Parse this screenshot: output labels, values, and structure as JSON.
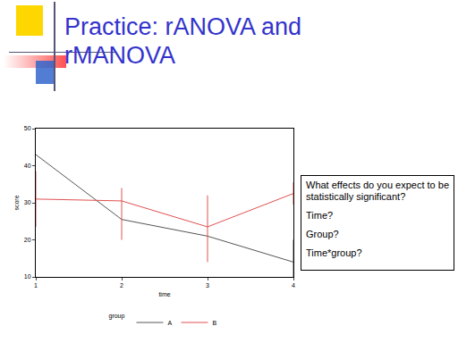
{
  "slide": {
    "title": "Practice: rANOVA and rMANOVA",
    "questions": [
      "What effects do you expect to be statistically significant?",
      "Time?",
      "Group?",
      "Time*group?"
    ]
  },
  "chart_data": {
    "type": "line",
    "x": [
      1,
      2,
      3,
      4
    ],
    "xlabel": "time",
    "ylabel": "score",
    "legend_title": "group",
    "series": [
      {
        "name": "A",
        "color": "#555555",
        "values": [
          43,
          25.5,
          21,
          14
        ],
        "error_plus": [
          null,
          null,
          null,
          6
        ],
        "error_minus": [
          null,
          null,
          null,
          4
        ]
      },
      {
        "name": "B",
        "color": "#e05050",
        "values": [
          31,
          30.5,
          23.5,
          32.5
        ],
        "error_plus": [
          7.5,
          3.5,
          8.5,
          3
        ],
        "error_minus": [
          7.5,
          10.5,
          9.5,
          3
        ]
      }
    ],
    "xlim": [
      1,
      4
    ],
    "ylim": [
      10,
      50
    ],
    "xticks": [
      1,
      2,
      3,
      4
    ],
    "yticks": [
      10,
      20,
      30,
      40,
      50
    ],
    "grid": false,
    "legend": "bottom"
  }
}
